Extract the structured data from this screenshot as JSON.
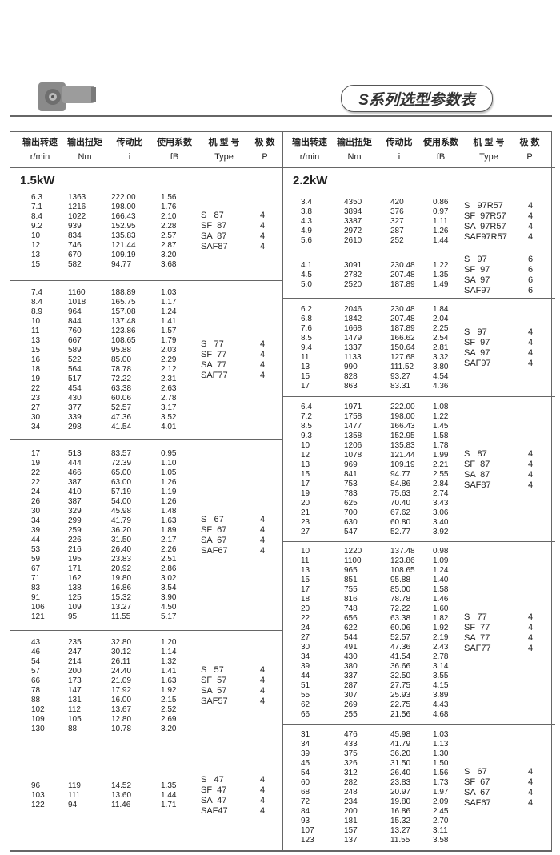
{
  "page_title": "S系列选型参数表",
  "header": {
    "columns": [
      {
        "zh": "输出转速",
        "en": "r/min"
      },
      {
        "zh": "输出扭矩",
        "en": "Nm"
      },
      {
        "zh": "传动比",
        "en": "i"
      },
      {
        "zh": "使用系数",
        "en": "fB"
      },
      {
        "zh": "机 型 号",
        "en": "Type"
      },
      {
        "zh": "极  数",
        "en": "P"
      }
    ]
  },
  "left": {
    "power": "1.5kW",
    "groups": [
      {
        "types": [
          "S   87",
          "SF  87",
          "SA  87",
          "SAF87"
        ],
        "poles": "4",
        "rows": [
          [
            "6.3",
            "1363",
            "222.00",
            "1.56"
          ],
          [
            "7.1",
            "1216",
            "198.00",
            "1.76"
          ],
          [
            "8.4",
            "1022",
            "166.43",
            "2.10"
          ],
          [
            "9.2",
            "939",
            "152.95",
            "2.28"
          ],
          [
            "10",
            "834",
            "135.83",
            "2.57"
          ],
          [
            "12",
            "746",
            "121.44",
            "2.87"
          ],
          [
            "13",
            "670",
            "109.19",
            "3.20"
          ],
          [
            "15",
            "582",
            "94.77",
            "3.68"
          ]
        ]
      },
      {
        "types": [
          "S   77",
          "SF  77",
          "SA  77",
          "SAF77"
        ],
        "poles": "4",
        "rows": [
          [
            "7.4",
            "1160",
            "188.89",
            "1.03"
          ],
          [
            "8.4",
            "1018",
            "165.75",
            "1.17"
          ],
          [
            "8.9",
            "964",
            "157.08",
            "1.24"
          ],
          [
            "10",
            "844",
            "137.48",
            "1.41"
          ],
          [
            "11",
            "760",
            "123.86",
            "1.57"
          ],
          [
            "13",
            "667",
            "108.65",
            "1.79"
          ],
          [
            "15",
            "589",
            "95.88",
            "2.03"
          ],
          [
            "16",
            "522",
            "85.00",
            "2.29"
          ],
          [
            "18",
            "564",
            "78.78",
            "2.12"
          ],
          [
            "19",
            "517",
            "72.22",
            "2.31"
          ],
          [
            "22",
            "454",
            "63.38",
            "2.63"
          ],
          [
            "23",
            "430",
            "60.06",
            "2.78"
          ],
          [
            "27",
            "377",
            "52.57",
            "3.17"
          ],
          [
            "30",
            "339",
            "47.36",
            "3.52"
          ],
          [
            "34",
            "298",
            "41.54",
            "4.01"
          ]
        ]
      },
      {
        "types": [
          "S   67",
          "SF  67",
          "SA  67",
          "SAF67"
        ],
        "poles": "4",
        "rows": [
          [
            "17",
            "513",
            "83.57",
            "0.95"
          ],
          [
            "19",
            "444",
            "72.39",
            "1.10"
          ],
          [
            "22",
            "466",
            "65.00",
            "1.05"
          ],
          [
            "22",
            "387",
            "63.00",
            "1.26"
          ],
          [
            "24",
            "410",
            "57.19",
            "1.19"
          ],
          [
            "26",
            "387",
            "54.00",
            "1.26"
          ],
          [
            "30",
            "329",
            "45.98",
            "1.48"
          ],
          [
            "34",
            "299",
            "41.79",
            "1.63"
          ],
          [
            "39",
            "259",
            "36.20",
            "1.89"
          ],
          [
            "44",
            "226",
            "31.50",
            "2.17"
          ],
          [
            "53",
            "216",
            "26.40",
            "2.26"
          ],
          [
            "59",
            "195",
            "23.83",
            "2.51"
          ],
          [
            "67",
            "171",
            "20.92",
            "2.86"
          ],
          [
            "71",
            "162",
            "19.80",
            "3.02"
          ],
          [
            "83",
            "138",
            "16.86",
            "3.54"
          ],
          [
            "91",
            "125",
            "15.32",
            "3.90"
          ],
          [
            "106",
            "109",
            "13.27",
            "4.50"
          ],
          [
            "121",
            "95",
            "11.55",
            "5.17"
          ]
        ]
      },
      {
        "types": [
          "S   57",
          "SF  57",
          "SA  57",
          "SAF57"
        ],
        "poles": "4",
        "rows": [
          [
            "43",
            "235",
            "32.80",
            "1.20"
          ],
          [
            "46",
            "247",
            "30.12",
            "1.14"
          ],
          [
            "54",
            "214",
            "26.11",
            "1.32"
          ],
          [
            "57",
            "200",
            "24.40",
            "1.41"
          ],
          [
            "66",
            "173",
            "21.09",
            "1.63"
          ],
          [
            "78",
            "147",
            "17.92",
            "1.92"
          ],
          [
            "88",
            "131",
            "16.00",
            "2.15"
          ],
          [
            "102",
            "112",
            "13.67",
            "2.52"
          ],
          [
            "109",
            "105",
            "12.80",
            "2.69"
          ],
          [
            "130",
            "88",
            "10.78",
            "3.20"
          ]
        ]
      },
      {
        "types": [
          "S   47",
          "SF  47",
          "SA  47",
          "SAF47"
        ],
        "poles": "4",
        "rows": [
          [
            "96",
            "119",
            "14.52",
            "1.35"
          ],
          [
            "103",
            "111",
            "13.60",
            "1.44"
          ],
          [
            "122",
            "94",
            "11.46",
            "1.71"
          ]
        ]
      }
    ]
  },
  "right": {
    "power": "2.2kW",
    "groups": [
      {
        "types": [
          "S   97R57",
          "SF  97R57",
          "SA  97R57",
          "SAF97R57"
        ],
        "poles": "4",
        "rows": [
          [
            "3.4",
            "4350",
            "420",
            "0.86"
          ],
          [
            "3.8",
            "3894",
            "376",
            "0.97"
          ],
          [
            "4.3",
            "3387",
            "327",
            "1.11"
          ],
          [
            "4.9",
            "2972",
            "287",
            "1.26"
          ],
          [
            "5.6",
            "2610",
            "252",
            "1.44"
          ]
        ]
      },
      {
        "types": [
          "S   97",
          "SF  97",
          "SA  97",
          "SAF97"
        ],
        "poles": "6",
        "rows": [
          [
            "4.1",
            "3091",
            "230.48",
            "1.22"
          ],
          [
            "4.5",
            "2782",
            "207.48",
            "1.35"
          ],
          [
            "5.0",
            "2520",
            "187.89",
            "1.49"
          ]
        ]
      },
      {
        "types": [
          "S   97",
          "SF  97",
          "SA  97",
          "SAF97"
        ],
        "poles": "4",
        "rows": [
          [
            "6.2",
            "2046",
            "230.48",
            "1.84"
          ],
          [
            "6.8",
            "1842",
            "207.48",
            "2.04"
          ],
          [
            "7.6",
            "1668",
            "187.89",
            "2.25"
          ],
          [
            "8.5",
            "1479",
            "166.62",
            "2.54"
          ],
          [
            "9.4",
            "1337",
            "150.64",
            "2.81"
          ],
          [
            "11",
            "1133",
            "127.68",
            "3.32"
          ],
          [
            "13",
            "990",
            "111.52",
            "3.80"
          ],
          [
            "15",
            "828",
            "93.27",
            "4.54"
          ],
          [
            "17",
            "863",
            "83.31",
            "4.36"
          ]
        ]
      },
      {
        "types": [
          "S   87",
          "SF  87",
          "SA  87",
          "SAF87"
        ],
        "poles": "4",
        "rows": [
          [
            "6.4",
            "1971",
            "222.00",
            "1.08"
          ],
          [
            "7.2",
            "1758",
            "198.00",
            "1.22"
          ],
          [
            "8.5",
            "1477",
            "166.43",
            "1.45"
          ],
          [
            "9.3",
            "1358",
            "152.95",
            "1.58"
          ],
          [
            "10",
            "1206",
            "135.83",
            "1.78"
          ],
          [
            "12",
            "1078",
            "121.44",
            "1.99"
          ],
          [
            "13",
            "969",
            "109.19",
            "2.21"
          ],
          [
            "15",
            "841",
            "94.77",
            "2.55"
          ],
          [
            "17",
            "753",
            "84.86",
            "2.84"
          ],
          [
            "19",
            "783",
            "75.63",
            "2.74"
          ],
          [
            "20",
            "625",
            "70.40",
            "3.43"
          ],
          [
            "21",
            "700",
            "67.62",
            "3.06"
          ],
          [
            "23",
            "630",
            "60.80",
            "3.40"
          ],
          [
            "27",
            "547",
            "52.77",
            "3.92"
          ]
        ]
      },
      {
        "types": [
          "S   77",
          "SF  77",
          "SA  77",
          "SAF77"
        ],
        "poles": "4",
        "rows": [
          [
            "10",
            "1220",
            "137.48",
            "0.98"
          ],
          [
            "11",
            "1100",
            "123.86",
            "1.09"
          ],
          [
            "13",
            "965",
            "108.65",
            "1.24"
          ],
          [
            "15",
            "851",
            "95.88",
            "1.40"
          ],
          [
            "17",
            "755",
            "85.00",
            "1.58"
          ],
          [
            "18",
            "816",
            "78.78",
            "1.46"
          ],
          [
            "20",
            "748",
            "72.22",
            "1.60"
          ],
          [
            "22",
            "656",
            "63.38",
            "1.82"
          ],
          [
            "24",
            "622",
            "60.06",
            "1.92"
          ],
          [
            "27",
            "544",
            "52.57",
            "2.19"
          ],
          [
            "30",
            "491",
            "47.36",
            "2.43"
          ],
          [
            "34",
            "430",
            "41.54",
            "2.78"
          ],
          [
            "39",
            "380",
            "36.66",
            "3.14"
          ],
          [
            "44",
            "337",
            "32.50",
            "3.55"
          ],
          [
            "51",
            "287",
            "27.75",
            "4.15"
          ],
          [
            "55",
            "307",
            "25.93",
            "3.89"
          ],
          [
            "62",
            "269",
            "22.75",
            "4.43"
          ],
          [
            "66",
            "255",
            "21.56",
            "4.68"
          ]
        ]
      },
      {
        "types": [
          "S   67",
          "SF  67",
          "SA  67",
          "SAF67"
        ],
        "poles": "4",
        "rows": [
          [
            "31",
            "476",
            "45.98",
            "1.03"
          ],
          [
            "34",
            "433",
            "41.79",
            "1.13"
          ],
          [
            "39",
            "375",
            "36.20",
            "1.30"
          ],
          [
            "45",
            "326",
            "31.50",
            "1.50"
          ],
          [
            "54",
            "312",
            "26.40",
            "1.56"
          ],
          [
            "60",
            "282",
            "23.83",
            "1.73"
          ],
          [
            "68",
            "248",
            "20.97",
            "1.97"
          ],
          [
            "72",
            "234",
            "19.80",
            "2.09"
          ],
          [
            "84",
            "200",
            "16.86",
            "2.45"
          ],
          [
            "93",
            "181",
            "15.32",
            "2.70"
          ],
          [
            "107",
            "157",
            "13.27",
            "3.11"
          ],
          [
            "123",
            "137",
            "11.55",
            "3.58"
          ]
        ]
      }
    ]
  }
}
